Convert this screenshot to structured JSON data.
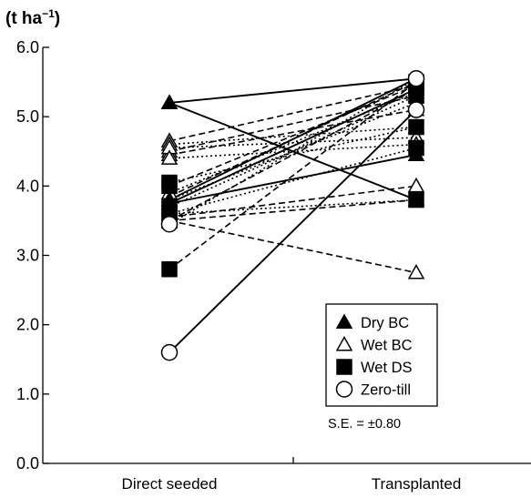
{
  "chart_data": {
    "type": "line",
    "ylabel_unit_main": "(t ha",
    "ylabel_unit_sup": "−1",
    "ylabel_unit_close": ")",
    "categories": [
      "Direct seeded",
      "Transplanted"
    ],
    "ylim": [
      0,
      6
    ],
    "yticks": [
      "0.0",
      "1.0",
      "2.0",
      "3.0",
      "4.0",
      "5.0",
      "6.0"
    ],
    "grid": false,
    "legend_position": "lower-right",
    "legend": [
      {
        "name": "Dry BC",
        "marker": "filled-triangle"
      },
      {
        "name": "Wet BC",
        "marker": "open-triangle"
      },
      {
        "name": "Wet DS",
        "marker": "filled-square"
      },
      {
        "name": "Zero-till",
        "marker": "open-circle"
      }
    ],
    "annotation": "S.E. = ±0.80",
    "series": [
      {
        "group": "Dry BC",
        "style": "solid",
        "values": [
          5.2,
          5.55
        ]
      },
      {
        "group": "Dry BC",
        "style": "solid",
        "values": [
          5.2,
          3.8
        ]
      },
      {
        "group": "Dry BC",
        "style": "solid",
        "values": [
          3.8,
          5.55
        ]
      },
      {
        "group": "Dry BC",
        "style": "solid",
        "values": [
          3.75,
          5.4
        ]
      },
      {
        "group": "Dry BC",
        "style": "solid",
        "values": [
          3.75,
          4.45
        ]
      },
      {
        "group": "Zero-till",
        "style": "solid",
        "values": [
          1.6,
          5.1
        ]
      },
      {
        "group": "Wet BC",
        "style": "dashed",
        "values": [
          4.65,
          5.45
        ]
      },
      {
        "group": "Wet BC",
        "style": "dashed",
        "values": [
          4.5,
          5.3
        ]
      },
      {
        "group": "Wet BC",
        "style": "dashed",
        "values": [
          4.45,
          5.1
        ]
      },
      {
        "group": "Wet BC",
        "style": "dashed",
        "values": [
          3.85,
          5.5
        ]
      },
      {
        "group": "Wet BC",
        "style": "dashed",
        "values": [
          3.55,
          4.0
        ]
      },
      {
        "group": "Wet BC",
        "style": "dashed",
        "values": [
          3.5,
          5.4
        ]
      },
      {
        "group": "Wet BC",
        "style": "dashed",
        "values": [
          3.5,
          2.75
        ]
      },
      {
        "group": "Wet DS",
        "style": "dashed",
        "values": [
          4.0,
          5.45
        ]
      },
      {
        "group": "Wet DS",
        "style": "dashed",
        "values": [
          3.5,
          3.8
        ]
      },
      {
        "group": "Wet DS",
        "style": "dashed",
        "values": [
          2.8,
          5.5
        ]
      },
      {
        "group": "Wet BC",
        "style": "dotted",
        "values": [
          4.6,
          4.85
        ]
      },
      {
        "group": "Wet BC",
        "style": "dotted",
        "values": [
          4.55,
          4.7
        ]
      },
      {
        "group": "Wet BC",
        "style": "dotted",
        "values": [
          4.4,
          4.6
        ]
      },
      {
        "group": "Wet BC",
        "style": "dotted",
        "values": [
          3.9,
          5.35
        ]
      },
      {
        "group": "Wet BC",
        "style": "dotted",
        "values": [
          3.8,
          5.2
        ]
      },
      {
        "group": "Wet BC",
        "style": "dotted",
        "values": [
          3.6,
          3.8
        ]
      },
      {
        "group": "Wet DS",
        "style": "dotted",
        "values": [
          4.05,
          4.85
        ]
      },
      {
        "group": "Wet DS",
        "style": "dotted",
        "values": [
          3.7,
          5.3
        ]
      },
      {
        "group": "Wet DS",
        "style": "dotted",
        "values": [
          3.6,
          4.55
        ]
      },
      {
        "group": "Zero-till",
        "style": "dotted",
        "values": [
          3.45,
          5.55
        ]
      }
    ]
  }
}
